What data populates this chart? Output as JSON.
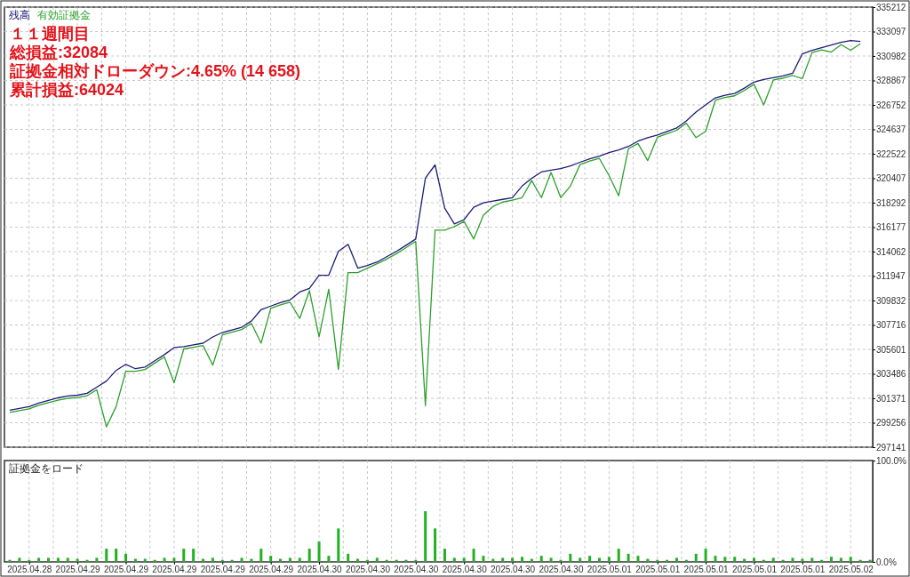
{
  "chart_data": [
    {
      "type": "line",
      "categories": [
        null,
        null,
        "2025.04.28",
        null,
        null,
        null,
        null,
        "2025.04.29",
        null,
        null,
        null,
        null,
        "2025.04.29",
        null,
        null,
        null,
        null,
        "2025.04.29",
        null,
        null,
        null,
        null,
        "2025.04.29",
        null,
        null,
        null,
        null,
        "2025.04.29",
        null,
        null,
        null,
        null,
        "2025.04.30",
        null,
        null,
        null,
        null,
        "2025.04.30",
        null,
        null,
        null,
        null,
        "2025.04.30",
        null,
        null,
        null,
        null,
        "2025.04.30",
        null,
        null,
        null,
        null,
        "2025.04.30",
        null,
        null,
        null,
        null,
        "2025.04.30",
        null,
        null,
        null,
        null,
        "2025.05.01",
        null,
        null,
        null,
        null,
        "2025.05.01",
        null,
        null,
        null,
        null,
        "2025.05.01",
        null,
        null,
        null,
        null,
        "2025.05.01",
        null,
        null,
        null,
        null,
        "2025.05.01",
        null,
        null,
        null,
        null,
        "2025.05.02",
        null,
        null
      ],
      "series": [
        {
          "name": "残高",
          "color": "#1c1c78",
          "values": [
            300350,
            300500,
            300650,
            300960,
            301190,
            301410,
            301570,
            301640,
            301800,
            302330,
            302860,
            303780,
            304310,
            303930,
            304080,
            304620,
            305150,
            305760,
            305840,
            305990,
            306140,
            306680,
            307060,
            307290,
            307520,
            308050,
            309040,
            309350,
            309650,
            309880,
            310570,
            310880,
            312020,
            312020,
            314080,
            314690,
            312630,
            312860,
            313160,
            313620,
            314080,
            314610,
            315150,
            320410,
            321560,
            317820,
            316450,
            316830,
            317900,
            318280,
            318430,
            318580,
            318730,
            319730,
            320410,
            320950,
            321100,
            321250,
            321480,
            321790,
            322090,
            322320,
            322630,
            322850,
            323160,
            323620,
            323920,
            324150,
            324460,
            324760,
            325370,
            326140,
            326750,
            327360,
            327590,
            327740,
            328200,
            328730,
            328960,
            329110,
            329260,
            329490,
            331170,
            331480,
            331710,
            331930,
            332160,
            332320,
            332240,
            null
          ]
        },
        {
          "name": "有効証拠金",
          "color": "#2ca02c",
          "values": [
            300150,
            300300,
            300450,
            300760,
            300990,
            301210,
            301370,
            301440,
            301600,
            302100,
            298900,
            300650,
            303700,
            303700,
            303860,
            304420,
            304950,
            302710,
            305640,
            305790,
            305940,
            304240,
            306860,
            307090,
            307320,
            307850,
            306140,
            309150,
            309450,
            309680,
            308280,
            310680,
            306680,
            310800,
            303860,
            312250,
            312250,
            312630,
            313010,
            313420,
            313880,
            314410,
            314950,
            300730,
            315910,
            315910,
            316220,
            316670,
            315150,
            317210,
            317970,
            318350,
            318510,
            318730,
            320210,
            318730,
            320900,
            318730,
            319730,
            321590,
            321890,
            322120,
            320640,
            318890,
            322960,
            323420,
            321940,
            323950,
            324260,
            324560,
            325170,
            323920,
            324460,
            327160,
            327390,
            327540,
            328000,
            328530,
            326750,
            328910,
            329060,
            329290,
            329030,
            331280,
            331510,
            331320,
            331960,
            331480,
            332040,
            null
          ]
        }
      ],
      "ylim": [
        297141,
        335212
      ],
      "yticks": [
        297141,
        299256,
        301371,
        303486,
        305601,
        307716,
        309832,
        311947,
        314062,
        316177,
        318292,
        320407,
        322522,
        324637,
        326752,
        328867,
        330982,
        333097,
        335212
      ],
      "tick_labels": "y",
      "grid": true,
      "legend": "top left",
      "annotations": [
        "１１週間目",
        "総損益:32084",
        "証拠金相対ドローダウン:4.65% (14 658)",
        "累計損益:64024"
      ]
    },
    {
      "type": "bar",
      "title": "証拠金をロード",
      "categories": [
        null,
        null,
        "2025.04.28",
        null,
        null,
        null,
        null,
        "2025.04.29",
        null,
        null,
        null,
        null,
        "2025.04.29",
        null,
        null,
        null,
        null,
        "2025.04.29",
        null,
        null,
        null,
        null,
        "2025.04.29",
        null,
        null,
        null,
        null,
        "2025.04.29",
        null,
        null,
        null,
        null,
        "2025.04.30",
        null,
        null,
        null,
        null,
        "2025.04.30",
        null,
        null,
        null,
        null,
        "2025.04.30",
        null,
        null,
        null,
        null,
        "2025.04.30",
        null,
        null,
        null,
        null,
        "2025.04.30",
        null,
        null,
        null,
        null,
        "2025.04.30",
        null,
        null,
        null,
        null,
        "2025.05.01",
        null,
        null,
        null,
        null,
        "2025.05.01",
        null,
        null,
        null,
        null,
        "2025.05.01",
        null,
        null,
        null,
        null,
        "2025.05.01",
        null,
        null,
        null,
        null,
        "2025.05.01",
        null,
        null,
        null,
        null,
        "2025.05.02",
        null,
        null
      ],
      "values": [
        2,
        4,
        2,
        4,
        4,
        4,
        4,
        3,
        2,
        4,
        13,
        13,
        8,
        3,
        3,
        2,
        4,
        4,
        13,
        13,
        3,
        4,
        2,
        2,
        4,
        3,
        13,
        6,
        3,
        4,
        4,
        13,
        20,
        6,
        33,
        8,
        3,
        2,
        4,
        2,
        2,
        2,
        2,
        50,
        33,
        13,
        4,
        4,
        13,
        6,
        3,
        4,
        4,
        5,
        3,
        6,
        4,
        2,
        8,
        4,
        6,
        4,
        5,
        13,
        8,
        6,
        3,
        2,
        2,
        4,
        2,
        8,
        13,
        6,
        5,
        5,
        3,
        4,
        2,
        4,
        2,
        4,
        3,
        4,
        2,
        5,
        4,
        5,
        2,
        2
      ],
      "color": "#22b122",
      "ylim": [
        0,
        100
      ],
      "yticks": [
        {
          "value": 0,
          "label": "0.0%"
        },
        {
          "value": 100,
          "label": "100.0%"
        }
      ],
      "grid": "x"
    }
  ]
}
